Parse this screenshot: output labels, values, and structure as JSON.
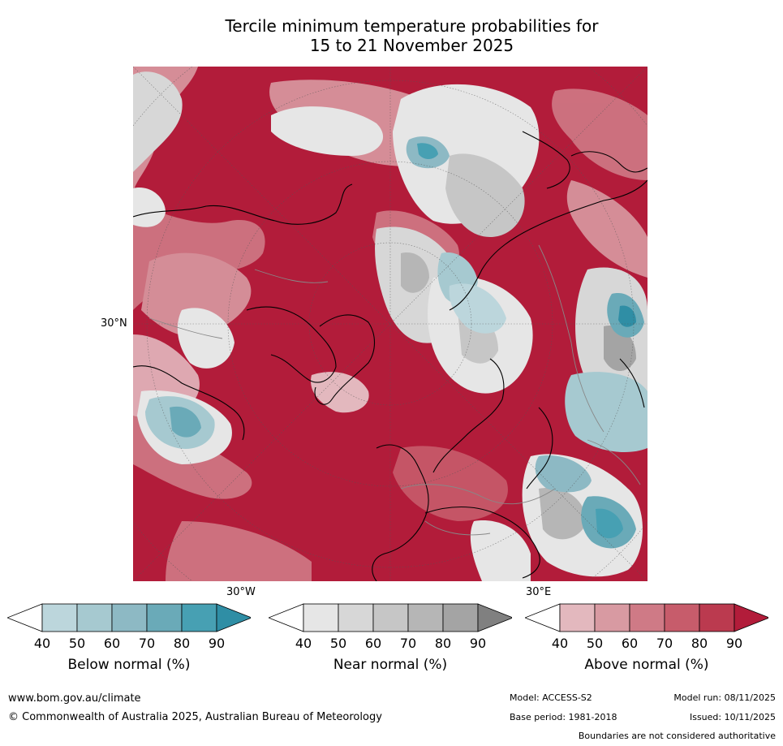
{
  "title": {
    "line1": "Tercile minimum temperature probabilities for",
    "line2": "15 to 21 November 2025"
  },
  "graticule": {
    "lat_label": "30°N",
    "lon_west_label": "30°W",
    "lon_east_label": "30°E"
  },
  "legend": {
    "ticks": [
      "40",
      "50",
      "60",
      "70",
      "80",
      "90"
    ],
    "below": {
      "label": "Below normal (%)",
      "colors": [
        "#ffffff",
        "#bcd6dc",
        "#a6c9d0",
        "#8db9c4",
        "#6aaab8",
        "#47a0b3",
        "#2f8ea5"
      ]
    },
    "near": {
      "label": "Near normal (%)",
      "colors": [
        "#ffffff",
        "#e6e6e6",
        "#d7d7d7",
        "#c6c6c6",
        "#b6b6b6",
        "#a4a4a4",
        "#808080"
      ]
    },
    "above": {
      "label": "Above normal (%)",
      "colors": [
        "#ffffff",
        "#e3b8be",
        "#d89aa2",
        "#cf7a86",
        "#c75c6b",
        "#bb3a4f",
        "#b21c3a"
      ]
    }
  },
  "footer": {
    "url": "www.bom.gov.au/climate",
    "copyright": "© Commonwealth of Australia 2025, Australian Bureau of Meteorology",
    "model": "Model: ACCESS-S2",
    "base_period": "Base period: 1981-2018",
    "model_run": "Model run: 08/11/2025",
    "issued": "Issued: 10/11/2025",
    "disclaimer": "Boundaries are not considered authoritative"
  }
}
